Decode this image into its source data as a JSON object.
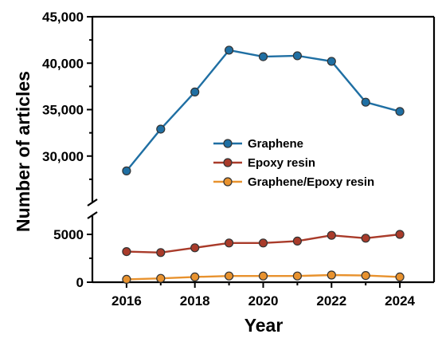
{
  "chart_data": {
    "type": "line",
    "xlabel": "Year",
    "ylabel": "Number of articles",
    "x": [
      2016,
      2017,
      2018,
      2019,
      2020,
      2021,
      2022,
      2023,
      2024
    ],
    "x_ticks": [
      "2016",
      "2018",
      "2020",
      "2022",
      "2024"
    ],
    "y_axis_break": true,
    "y_lower_ticks": [
      "0",
      "5000"
    ],
    "y_upper_ticks": [
      "30,000",
      "35,000",
      "40,000",
      "45,000"
    ],
    "legend_position": "center-right",
    "series": [
      {
        "name": "Graphene",
        "color": "#1f6fa3",
        "values": [
          28400,
          32900,
          36900,
          41400,
          40700,
          40800,
          40200,
          35800,
          34800
        ]
      },
      {
        "name": "Epoxy resin",
        "color": "#a93b2a",
        "values": [
          3200,
          3100,
          3600,
          4100,
          4100,
          4300,
          4900,
          4600,
          5000
        ]
      },
      {
        "name": "Graphene/Epoxy resin",
        "color": "#e8922e",
        "values": [
          300,
          400,
          550,
          650,
          650,
          650,
          750,
          700,
          550
        ]
      }
    ]
  }
}
